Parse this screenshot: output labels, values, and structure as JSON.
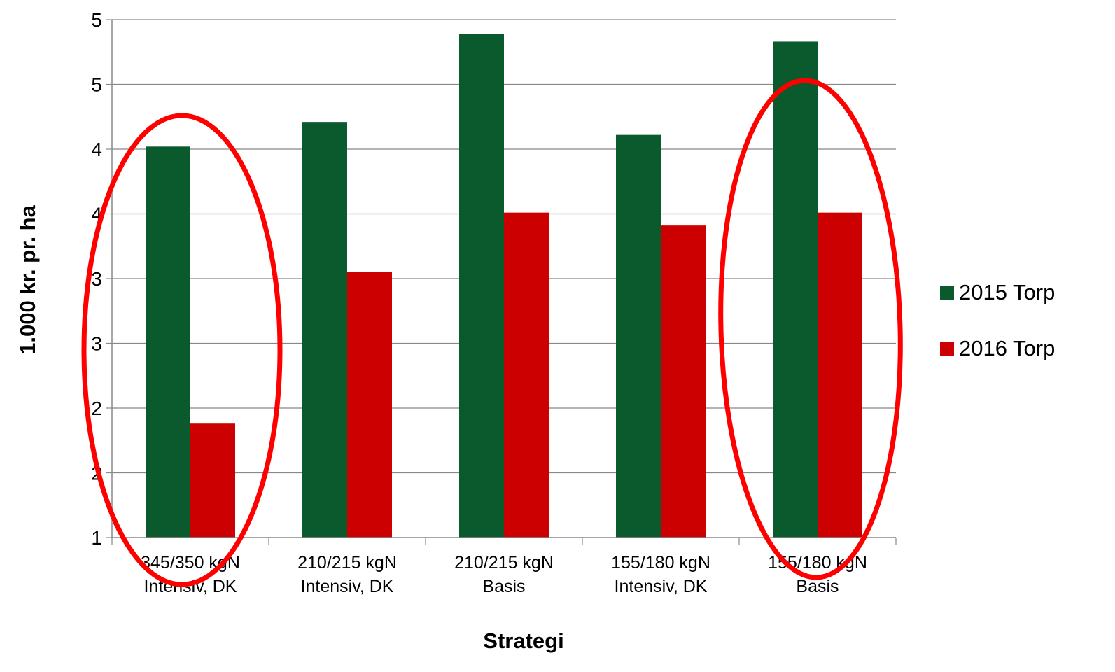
{
  "chart_data": {
    "type": "bar",
    "title": "",
    "xlabel": "Strategi",
    "ylabel": "1.000 kr. pr. ha",
    "ylim": [
      1,
      5
    ],
    "y_tick_labels": [
      "1",
      "2",
      "2",
      "3",
      "3",
      "4",
      "4",
      "5",
      "5"
    ],
    "grid": true,
    "legend_position": "right",
    "categories": [
      [
        "345/350 kgN",
        "Intensiv, DK"
      ],
      [
        "210/215 kgN",
        "Intensiv, DK"
      ],
      [
        "210/215 kgN",
        "Basis"
      ],
      [
        "155/180 kgN",
        "Intensiv, DK"
      ],
      [
        "155/180 kgN",
        "Basis"
      ]
    ],
    "series": [
      {
        "name": "2015 Torp",
        "color": "#0b5a2e",
        "values": [
          4.02,
          4.21,
          4.89,
          4.11,
          4.83
        ]
      },
      {
        "name": "2016 Torp",
        "color": "#cc0000",
        "values": [
          1.88,
          3.05,
          3.51,
          3.41,
          3.51
        ]
      }
    ],
    "annotations": [
      {
        "type": "ellipse",
        "color": "#ff0000",
        "highlights_category_index": 0
      },
      {
        "type": "ellipse",
        "color": "#ff0000",
        "highlights_category_index": 4
      }
    ]
  }
}
